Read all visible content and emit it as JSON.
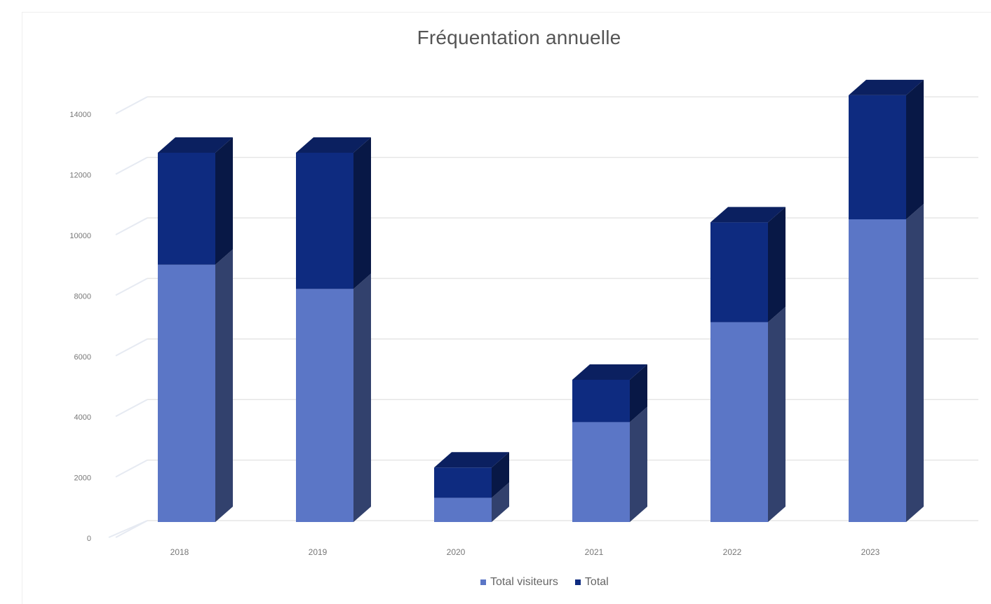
{
  "chart_data": {
    "type": "bar",
    "stacked": true,
    "three_d": true,
    "title": "Fréquentation annuelle",
    "xlabel": "",
    "ylabel": "",
    "categories": [
      "2018",
      "2019",
      "2020",
      "2021",
      "2022",
      "2023"
    ],
    "ylim": [
      0,
      14000
    ],
    "yticks": [
      "0",
      "2000",
      "4000",
      "6000",
      "8000",
      "10000",
      "12000",
      "14000"
    ],
    "legend_position": "bottom",
    "grid": true,
    "series": [
      {
        "name": "Total visiteurs",
        "color": "#5b76c6",
        "values": [
          8500,
          7700,
          800,
          3300,
          6600,
          10000
        ]
      },
      {
        "name": "Total ",
        "color": "#0e2b80",
        "values": [
          3700,
          4500,
          1000,
          1400,
          3300,
          4100
        ]
      }
    ]
  }
}
